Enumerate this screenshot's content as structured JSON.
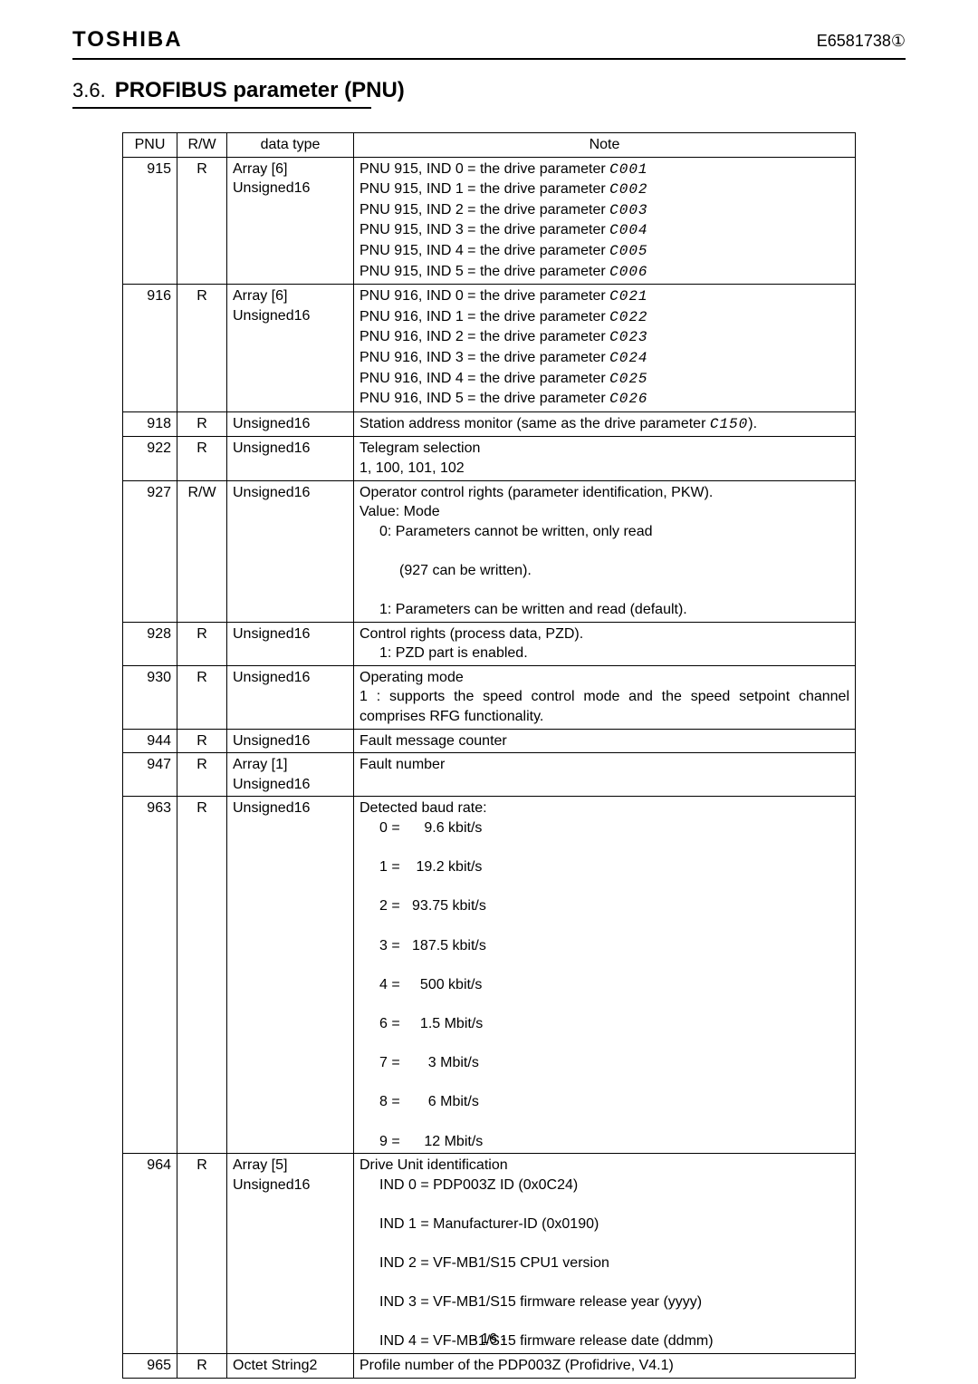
{
  "header": {
    "brand": "TOSHIBA",
    "docnum": "E6581738①"
  },
  "section": {
    "num": "3.6.",
    "title": "PROFIBUS parameter (PNU)"
  },
  "table": {
    "headers": {
      "pnu": "PNU",
      "rw": "R/W",
      "dt": "data type",
      "note": "Note"
    },
    "rows": [
      {
        "pnu": "915",
        "rw": "R",
        "dt": "Array [6]\nUnsigned16",
        "note_lines": [
          "PNU 915, IND 0 = the drive parameter <span class='seg'>C001</span>",
          "PNU 915, IND 1 = the drive parameter <span class='seg'>C002</span>",
          "PNU 915, IND 2 = the drive parameter <span class='seg'>C003</span>",
          "PNU 915, IND 3 = the drive parameter <span class='seg'>C004</span>",
          "PNU 915, IND 4 = the drive parameter <span class='seg'>C005</span>",
          "PNU 915, IND 5 = the drive parameter <span class='seg'>C006</span>"
        ]
      },
      {
        "pnu": "916",
        "rw": "R",
        "dt": "Array [6]\nUnsigned16",
        "note_lines": [
          "PNU 916, IND 0 = the drive parameter <span class='seg'>C021</span>",
          "PNU 916, IND 1 = the drive parameter <span class='seg'>C022</span>",
          "PNU 916, IND 2 = the drive parameter <span class='seg'>C023</span>",
          "PNU 916, IND 3 = the drive parameter <span class='seg'>C024</span>",
          "PNU 916, IND 4 = the drive parameter <span class='seg'>C025</span>",
          "PNU 916, IND 5 = the drive parameter <span class='seg'>C026</span>"
        ]
      },
      {
        "pnu": "918",
        "rw": "R",
        "dt": "Unsigned16",
        "note_lines": [
          "Station address monitor (same as the drive parameter <span class='seg'>C150</span>)."
        ]
      },
      {
        "pnu": "922",
        "rw": "R",
        "dt": "Unsigned16",
        "note_lines": [
          "Telegram selection",
          "1, 100, 101, 102"
        ]
      },
      {
        "pnu": "927",
        "rw": "R/W",
        "dt": "Unsigned16",
        "note_lines": [
          "Operator control rights (parameter identification, PKW).",
          "Value: Mode",
          "<span class='indent1'>0: Parameters cannot be written, only read</span>",
          "<span class='indent2'>(927 can be written).</span>",
          "<span class='indent1'>1: Parameters can be written and read (default).</span>"
        ]
      },
      {
        "pnu": "928",
        "rw": "R",
        "dt": "Unsigned16",
        "note_lines": [
          "Control rights (process data, PZD).",
          "<span class='indent1'>1: PZD part is enabled.</span>"
        ]
      },
      {
        "pnu": "930",
        "rw": "R",
        "dt": "Unsigned16",
        "note_lines": [
          "Operating mode",
          "1 : supports the speed control mode and the speed setpoint channel comprises RFG functionality."
        ],
        "justify": true
      },
      {
        "pnu": "944",
        "rw": "R",
        "dt": "Unsigned16",
        "note_lines": [
          "Fault message counter"
        ]
      },
      {
        "pnu": "947",
        "rw": "R",
        "dt": "Array [1]\nUnsigned16",
        "note_lines": [
          "Fault number"
        ]
      },
      {
        "pnu": "963",
        "rw": "R",
        "dt": "Unsigned16",
        "note_lines": [
          "Detected baud rate:",
          "<span class='indent1 baud-row'>0 =      9.6 kbit/s</span>",
          "<span class='indent1 baud-row'>1 =    19.2 kbit/s</span>",
          "<span class='indent1 baud-row'>2 =   93.75 kbit/s</span>",
          "<span class='indent1 baud-row'>3 =   187.5 kbit/s</span>",
          "<span class='indent1 baud-row'>4 =     500 kbit/s</span>",
          "<span class='indent1 baud-row'>6 =     1.5 Mbit/s</span>",
          "<span class='indent1 baud-row'>7 =       3 Mbit/s</span>",
          "<span class='indent1 baud-row'>8 =       6 Mbit/s</span>",
          "<span class='indent1 baud-row'>9 =      12 Mbit/s</span>"
        ]
      },
      {
        "pnu": "964",
        "rw": "R",
        "dt": "Array [5]\nUnsigned16",
        "note_lines": [
          "Drive Unit identification",
          "<span class='indent1'>IND 0 = PDP003Z ID (0x0C24)</span>",
          "<span class='indent1'>IND 1 = Manufacturer-ID (0x0190)</span>",
          "<span class='indent1'>IND 2 = VF-MB1/S15 CPU1 version</span>",
          "<span class='indent1'>IND 3 = VF-MB1/S15 firmware release year (yyyy)</span>",
          "<span class='indent1'>IND 4 = VF-MB1/S15 firmware release date (ddmm)</span>"
        ]
      },
      {
        "pnu": "965",
        "rw": "R",
        "dt": "Octet String2",
        "note_lines": [
          "Profile number of the PDP003Z (Profidrive, V4.1)"
        ]
      }
    ]
  },
  "footer": {
    "page": "- 16 -"
  }
}
